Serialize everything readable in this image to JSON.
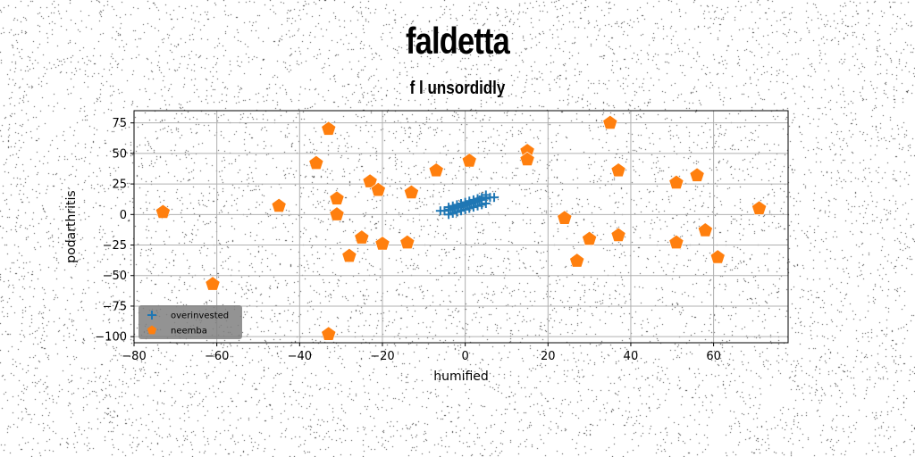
{
  "chart_data": {
    "type": "scatter",
    "title": "faldetta",
    "subtitle": "f l unsordidly",
    "xlabel": "humified",
    "ylabel": "podarthritis",
    "xlim": [
      -80,
      78
    ],
    "ylim": [
      -105,
      85
    ],
    "xticks": [
      -80,
      -60,
      -40,
      -20,
      0,
      20,
      40,
      60
    ],
    "yticks": [
      75,
      50,
      25,
      0,
      -25,
      -50,
      -75,
      -100
    ],
    "xtick_labels": [
      "−80",
      "−60",
      "−40",
      "−20",
      "0",
      "20",
      "40",
      "60"
    ],
    "ytick_labels": [
      "75",
      "50",
      "25",
      "0",
      "−25",
      "−50",
      "−75",
      "−100"
    ],
    "grid": true,
    "legend_position": "lower-left",
    "series": [
      {
        "name": "overinvested",
        "marker": "plus",
        "color": "#1f77b4",
        "points": [
          [
            -6,
            3
          ],
          [
            -5,
            3
          ],
          [
            -4,
            4
          ],
          [
            -3.5,
            4
          ],
          [
            -3,
            5
          ],
          [
            -2.5,
            5
          ],
          [
            -2,
            6
          ],
          [
            -1.5,
            6
          ],
          [
            -1,
            7
          ],
          [
            -0.5,
            7
          ],
          [
            0,
            8
          ],
          [
            0.5,
            8
          ],
          [
            1,
            9
          ],
          [
            1.5,
            9
          ],
          [
            2,
            10
          ],
          [
            2.5,
            10
          ],
          [
            3,
            11
          ],
          [
            3.5,
            12
          ],
          [
            4,
            12
          ],
          [
            5,
            13
          ],
          [
            6,
            14
          ],
          [
            7,
            14
          ],
          [
            -4,
            0
          ],
          [
            -3,
            1
          ],
          [
            -2,
            2
          ],
          [
            -1,
            3
          ],
          [
            0,
            4
          ],
          [
            1,
            5
          ],
          [
            2,
            6
          ],
          [
            3,
            7
          ],
          [
            4,
            8
          ],
          [
            5,
            9
          ],
          [
            -4,
            6
          ],
          [
            -3,
            7
          ],
          [
            -2,
            8
          ],
          [
            -1,
            9
          ],
          [
            0,
            10
          ],
          [
            1,
            11
          ],
          [
            2,
            12
          ],
          [
            3,
            13
          ],
          [
            4,
            14
          ],
          [
            5,
            16
          ]
        ]
      },
      {
        "name": "neemba",
        "marker": "pentagon",
        "color": "#ff7f0e",
        "points": [
          [
            -73,
            2
          ],
          [
            -61,
            -57
          ],
          [
            -45,
            7
          ],
          [
            -36,
            42
          ],
          [
            -33,
            70
          ],
          [
            -33,
            -98
          ],
          [
            -31,
            13
          ],
          [
            -31,
            0
          ],
          [
            -28,
            -34
          ],
          [
            -25,
            -19
          ],
          [
            -23,
            27
          ],
          [
            -21,
            20
          ],
          [
            -20,
            -24
          ],
          [
            -14,
            -23
          ],
          [
            -13,
            18
          ],
          [
            -7,
            36
          ],
          [
            1,
            44
          ],
          [
            15,
            52
          ],
          [
            15,
            45
          ],
          [
            24,
            -3
          ],
          [
            27,
            -38
          ],
          [
            30,
            -20
          ],
          [
            35,
            75
          ],
          [
            37,
            36
          ],
          [
            37,
            -17
          ],
          [
            51,
            26
          ],
          [
            51,
            -23
          ],
          [
            56,
            32
          ],
          [
            58,
            -13
          ],
          [
            61,
            -35
          ],
          [
            71,
            5
          ]
        ]
      }
    ]
  }
}
